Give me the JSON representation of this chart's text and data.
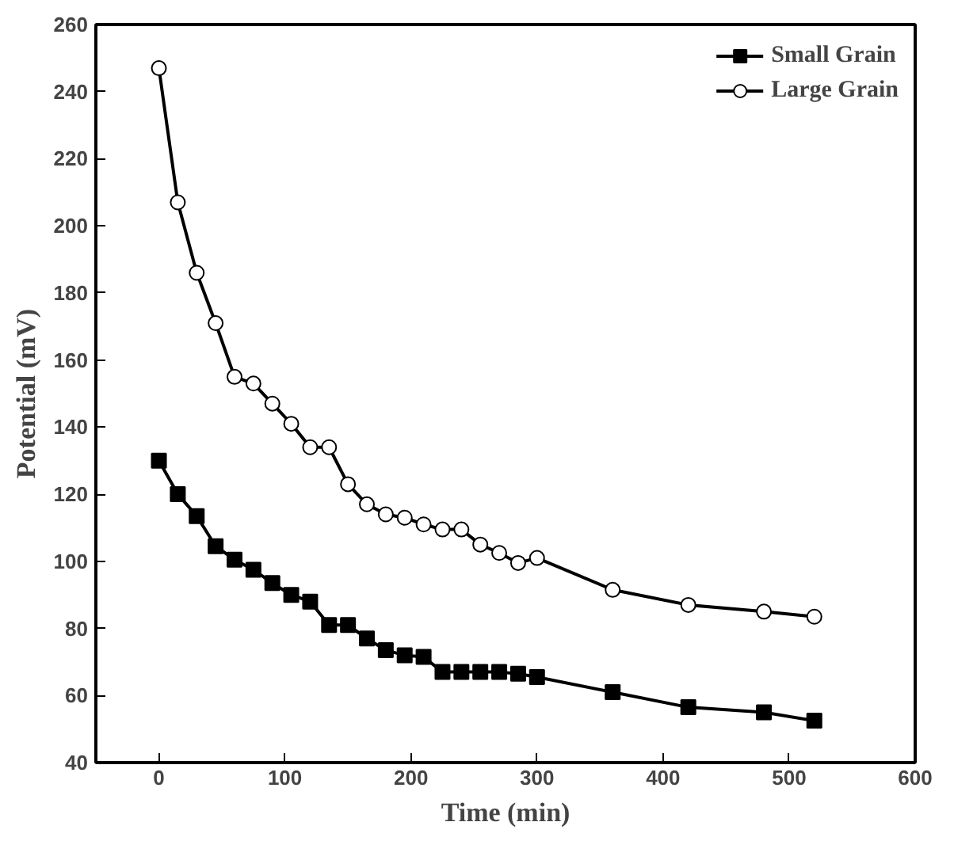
{
  "chart_data": {
    "type": "line",
    "xlabel": "Time (min)",
    "ylabel": "Potential (mV)",
    "x": [
      0,
      15,
      30,
      45,
      60,
      75,
      90,
      105,
      120,
      135,
      150,
      165,
      180,
      195,
      210,
      225,
      240,
      255,
      270,
      285,
      300,
      360,
      420,
      480,
      520
    ],
    "series": [
      {
        "name": "Small Grain",
        "color": "#000000",
        "marker": "square",
        "values": [
          130,
          120,
          113.5,
          104.5,
          100.5,
          97.5,
          93.5,
          90,
          88,
          81,
          81,
          77,
          73.5,
          72,
          71.5,
          67,
          67,
          67,
          67,
          66.5,
          65.5,
          61,
          56.5,
          55,
          52.5
        ]
      },
      {
        "name": "Large Grain",
        "color": "#000000",
        "marker": "circle",
        "values": [
          247,
          207,
          186,
          171,
          155,
          153,
          147,
          141,
          134,
          134,
          123,
          117,
          114,
          113,
          111,
          109.5,
          109.5,
          105,
          102.5,
          99.5,
          101,
          91.5,
          87,
          85,
          83.5
        ]
      }
    ],
    "xlim": [
      -50,
      600
    ],
    "xticks": [
      0,
      100,
      200,
      300,
      400,
      500,
      600
    ],
    "ylim": [
      40,
      260
    ],
    "yticks": [
      40,
      60,
      80,
      100,
      120,
      140,
      160,
      180,
      200,
      220,
      240,
      260
    ],
    "grid": false,
    "legend": "top right",
    "line_style": "solid"
  }
}
